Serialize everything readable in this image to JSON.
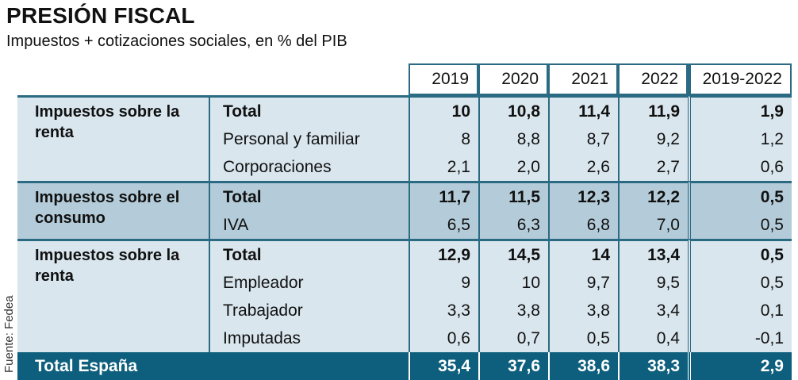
{
  "title": "PRESIÓN FISCAL",
  "subtitle": "Impuestos + cotizaciones sociales, en % del PIB",
  "source": "Fuente: Fedea",
  "colors": {
    "accent": "#0e5f7d",
    "group_light": "#d9e6ee",
    "group_mid": "#b4ccd9",
    "border": "#2b6a83"
  },
  "chart_data": {
    "type": "table",
    "columns": [
      "2019",
      "2020",
      "2021",
      "2022",
      "2019-2022"
    ],
    "groups": [
      {
        "name": "Impuestos sobre la renta",
        "rows": [
          {
            "label": "Total",
            "bold": true,
            "values": [
              "10",
              "10,8",
              "11,4",
              "11,9",
              "1,9"
            ]
          },
          {
            "label": "Personal y familiar",
            "bold": false,
            "values": [
              "8",
              "8,8",
              "8,7",
              "9,2",
              "1,2"
            ]
          },
          {
            "label": "Corporaciones",
            "bold": false,
            "values": [
              "2,1",
              "2,0",
              "2,6",
              "2,7",
              "0,6"
            ]
          }
        ]
      },
      {
        "name": "Impuestos sobre el consumo",
        "rows": [
          {
            "label": "Total",
            "bold": true,
            "values": [
              "11,7",
              "11,5",
              "12,3",
              "12,2",
              "0,5"
            ]
          },
          {
            "label": "IVA",
            "bold": false,
            "values": [
              "6,5",
              "6,3",
              "6,8",
              "7,0",
              "0,5"
            ]
          }
        ]
      },
      {
        "name": "Impuestos sobre la renta",
        "rows": [
          {
            "label": "Total",
            "bold": true,
            "values": [
              "12,9",
              "14,5",
              "14",
              "13,4",
              "0,5"
            ]
          },
          {
            "label": "Empleador",
            "bold": false,
            "values": [
              "9",
              "10",
              "9,7",
              "9,5",
              "0,5"
            ]
          },
          {
            "label": "Trabajador",
            "bold": false,
            "values": [
              "3,3",
              "3,8",
              "3,8",
              "3,4",
              "0,1"
            ]
          },
          {
            "label": "Imputadas",
            "bold": false,
            "values": [
              "0,6",
              "0,7",
              "0,5",
              "0,4",
              "-0,1"
            ]
          }
        ]
      }
    ],
    "total": {
      "label": "Total España",
      "values": [
        "35,4",
        "37,6",
        "38,6",
        "38,3",
        "2,9"
      ]
    }
  }
}
